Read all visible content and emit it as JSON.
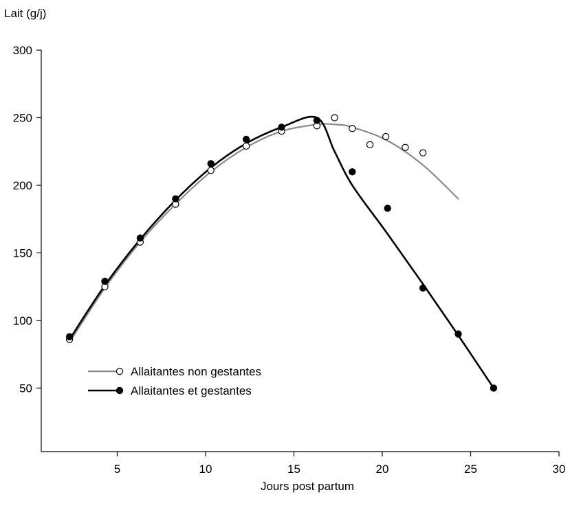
{
  "chart_data": {
    "type": "line",
    "ylabel": "Lait (g/j)",
    "xlabel": "Jours post partum",
    "xlim": [
      0.7,
      30
    ],
    "ylim": [
      3,
      300
    ],
    "x_ticks": [
      5,
      10,
      15,
      20,
      25,
      30
    ],
    "y_ticks": [
      50,
      100,
      150,
      200,
      250,
      300
    ],
    "grid": false,
    "legend_position": "lower-left",
    "series": [
      {
        "name": "Allaitantes non gestantes",
        "marker": "open-circle",
        "line_color": "#8a8a8a",
        "points": [
          {
            "x": 2.3,
            "y": 86
          },
          {
            "x": 4.3,
            "y": 125
          },
          {
            "x": 6.3,
            "y": 158
          },
          {
            "x": 8.3,
            "y": 186
          },
          {
            "x": 10.3,
            "y": 211
          },
          {
            "x": 12.3,
            "y": 229
          },
          {
            "x": 14.3,
            "y": 240
          },
          {
            "x": 16.3,
            "y": 244
          },
          {
            "x": 17.3,
            "y": 250
          },
          {
            "x": 18.3,
            "y": 242
          },
          {
            "x": 19.3,
            "y": 230
          },
          {
            "x": 20.2,
            "y": 236
          },
          {
            "x": 21.3,
            "y": 228
          },
          {
            "x": 22.3,
            "y": 224
          }
        ],
        "curve": [
          {
            "x": 2.3,
            "y": 84
          },
          {
            "x": 4.3,
            "y": 124
          },
          {
            "x": 6.3,
            "y": 158
          },
          {
            "x": 8.3,
            "y": 186
          },
          {
            "x": 10.3,
            "y": 210
          },
          {
            "x": 12.3,
            "y": 228
          },
          {
            "x": 14.3,
            "y": 240
          },
          {
            "x": 16.3,
            "y": 245
          },
          {
            "x": 17.3,
            "y": 245
          },
          {
            "x": 18.3,
            "y": 243
          },
          {
            "x": 20.3,
            "y": 233
          },
          {
            "x": 22.3,
            "y": 215
          },
          {
            "x": 24.3,
            "y": 190
          }
        ]
      },
      {
        "name": "Allaitantes et gestantes",
        "marker": "filled-circle",
        "line_color": "#000000",
        "points": [
          {
            "x": 2.3,
            "y": 88
          },
          {
            "x": 4.3,
            "y": 129
          },
          {
            "x": 6.3,
            "y": 161
          },
          {
            "x": 8.3,
            "y": 190
          },
          {
            "x": 10.3,
            "y": 216
          },
          {
            "x": 12.3,
            "y": 234
          },
          {
            "x": 14.3,
            "y": 243
          },
          {
            "x": 16.3,
            "y": 248
          },
          {
            "x": 18.3,
            "y": 210
          },
          {
            "x": 20.3,
            "y": 183
          },
          {
            "x": 22.3,
            "y": 124
          },
          {
            "x": 24.3,
            "y": 90
          },
          {
            "x": 26.3,
            "y": 50
          }
        ],
        "curve": [
          {
            "x": 2.3,
            "y": 86
          },
          {
            "x": 4.3,
            "y": 126
          },
          {
            "x": 6.3,
            "y": 160
          },
          {
            "x": 8.3,
            "y": 189
          },
          {
            "x": 10.3,
            "y": 213
          },
          {
            "x": 12.3,
            "y": 231
          },
          {
            "x": 14.3,
            "y": 243
          },
          {
            "x": 16.3,
            "y": 250
          },
          {
            "x": 17.3,
            "y": 225
          },
          {
            "x": 18.3,
            "y": 200
          },
          {
            "x": 20.3,
            "y": 164
          },
          {
            "x": 22.3,
            "y": 127
          },
          {
            "x": 24.3,
            "y": 89
          },
          {
            "x": 26.3,
            "y": 50
          }
        ]
      }
    ]
  }
}
